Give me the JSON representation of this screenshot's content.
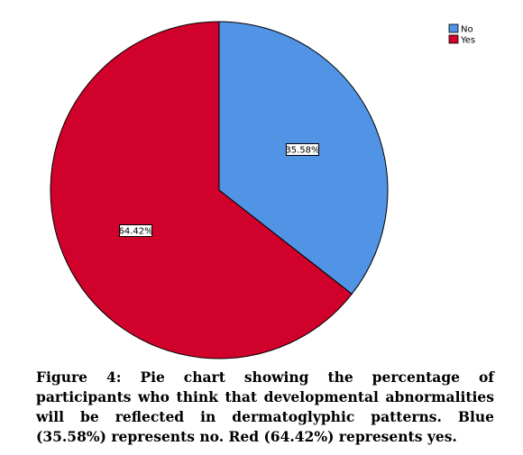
{
  "chart_data": {
    "type": "pie",
    "categories": [
      "No",
      "Yes"
    ],
    "values": [
      35.58,
      64.42
    ],
    "labels": [
      "35.58%",
      "64.42%"
    ],
    "colors": [
      "#5193E4",
      "#D0022B"
    ],
    "start": "top",
    "direction": "clockwise",
    "legend": {
      "placement": "top-right",
      "entries": [
        "No",
        "Yes"
      ]
    }
  },
  "caption": {
    "label": "Figure 4:",
    "text": "Pie chart showing the percentage of participants who think that developmental abnormalities will be reflected in dermatoglyphic patterns. Blue (35.58%) represents no. Red (64.42%) represents yes."
  }
}
